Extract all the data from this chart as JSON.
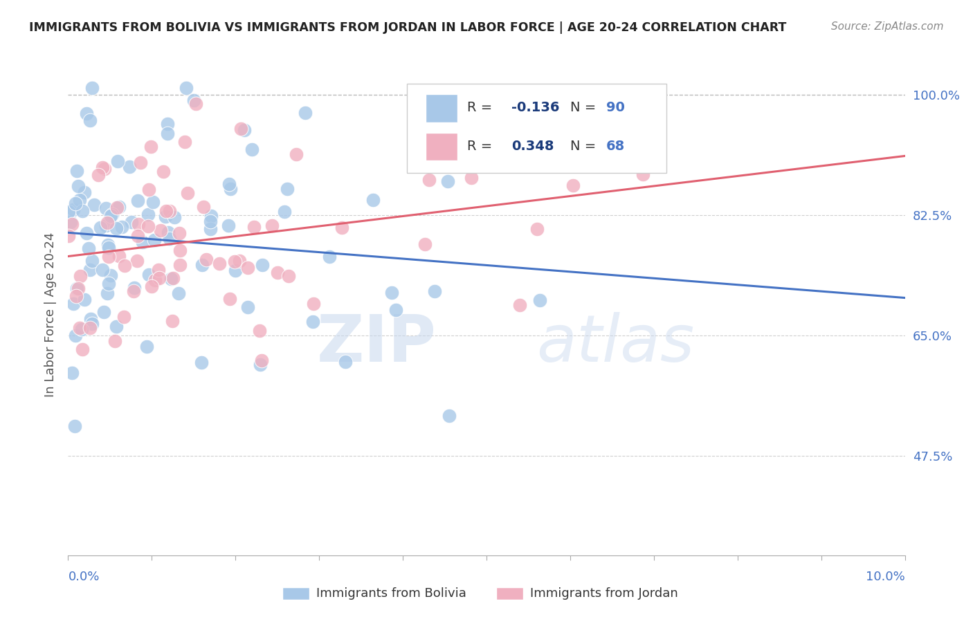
{
  "title": "IMMIGRANTS FROM BOLIVIA VS IMMIGRANTS FROM JORDAN IN LABOR FORCE | AGE 20-24 CORRELATION CHART",
  "source": "Source: ZipAtlas.com",
  "ylabel": "In Labor Force | Age 20-24",
  "xlim": [
    0.0,
    10.0
  ],
  "ylim": [
    33.0,
    103.0
  ],
  "yticks": [
    47.5,
    65.0,
    82.5,
    100.0
  ],
  "ytick_labels": [
    "47.5%",
    "65.0%",
    "82.5%",
    "100.0%"
  ],
  "xtick_left_label": "0.0%",
  "xtick_right_label": "10.0%",
  "bolivia_color": "#a8c8e8",
  "jordan_color": "#f0b0c0",
  "bolivia_trend_color": "#4472c4",
  "jordan_trend_color": "#e06070",
  "bolivia_R": -0.136,
  "bolivia_N": 90,
  "jordan_R": 0.348,
  "jordan_N": 68,
  "legend_bolivia_label": "Immigrants from Bolivia",
  "legend_jordan_label": "Immigrants from Jordan",
  "watermark_zip": "ZIP",
  "watermark_atlas": "atlas",
  "background_color": "#ffffff",
  "grid_color": "#d0d0d0",
  "title_color": "#222222",
  "axis_tick_color": "#4472c4",
  "r_value_color": "#1a3a7a",
  "n_value_color": "#4472c4",
  "bolivia_seed": 42,
  "jordan_seed": 7
}
